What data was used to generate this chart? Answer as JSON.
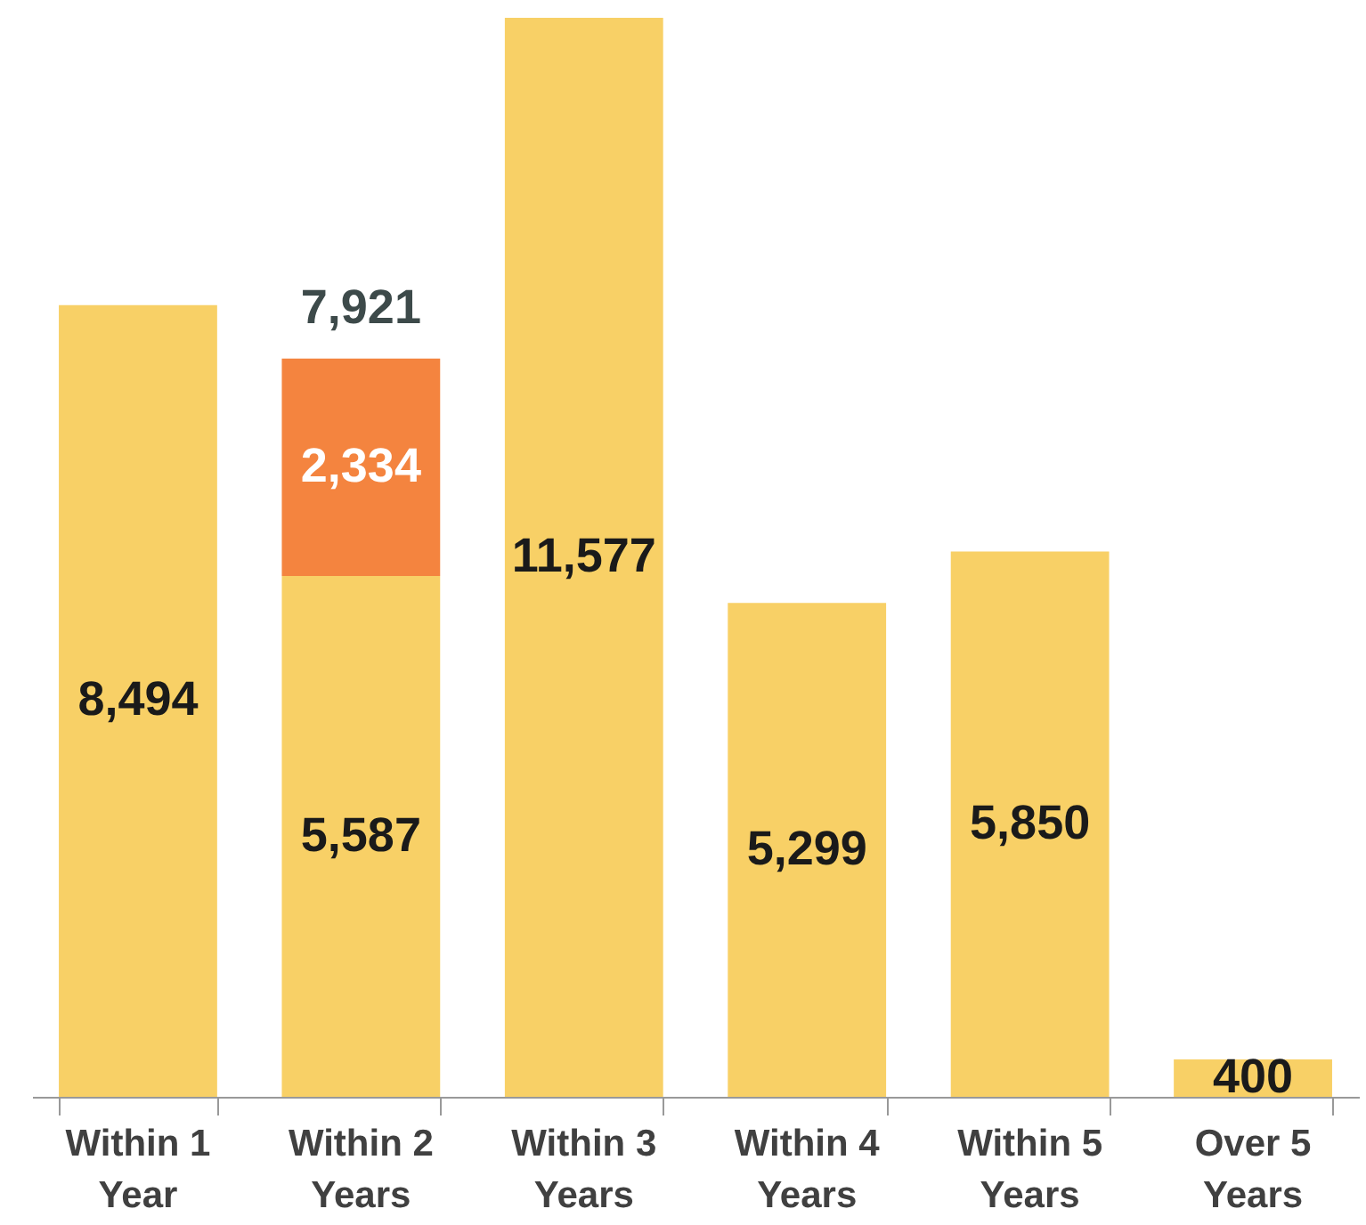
{
  "chart_data": {
    "type": "bar",
    "stacked": true,
    "tick_labels": "x",
    "categories": [
      "Within 1 Year",
      "Within 2 Years",
      "Within 3 Years",
      "Within 4 Years",
      "Within 5 Years",
      "Over 5 Years"
    ],
    "series": [
      {
        "color": "#f8d066",
        "values": [
          8494,
          5587,
          11577,
          5299,
          5850,
          400
        ],
        "value_labels": [
          "8,494",
          "5,587",
          "11,577",
          "5,299",
          "5,850",
          "400"
        ]
      },
      {
        "color": "#f4843f",
        "values": [
          null,
          2334,
          null,
          null,
          null,
          null
        ],
        "value_labels": [
          null,
          "2,334",
          null,
          null,
          null,
          null
        ]
      }
    ],
    "totals": [
      null,
      "7,921",
      null,
      null,
      null,
      null
    ]
  }
}
